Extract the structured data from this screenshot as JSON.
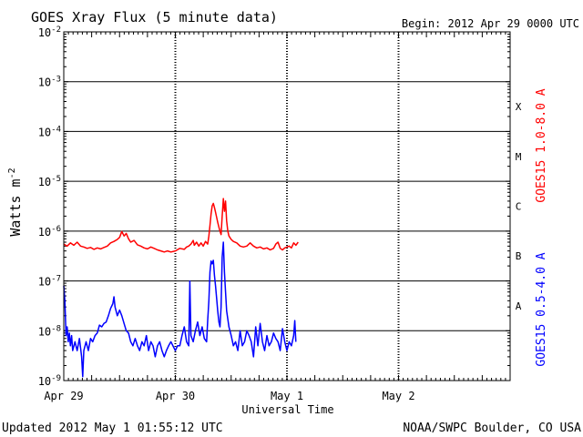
{
  "header": {
    "title": "GOES Xray Flux (5 minute data)",
    "begin": "Begin:  2012 Apr 29 0000 UTC"
  },
  "footer": {
    "updated": "Updated 2012 May  1 01:55:12 UTC",
    "credit": "NOAA/SWPC Boulder, CO USA"
  },
  "colors": {
    "long": "#ff0000",
    "short": "#0000ff",
    "axis": "#000000"
  },
  "chart_data": {
    "type": "line",
    "title": "GOES Xray Flux (5 minute data)",
    "xlabel": "Universal Time",
    "ylabel_base": "Watts m",
    "ylabel_exp": "-2",
    "yscale": "log",
    "ylim": [
      1e-09,
      0.01
    ],
    "xlim": [
      0,
      4
    ],
    "grid": true,
    "y_ticks": [
      {
        "value": 1e-09,
        "base": "10",
        "exp": "-9"
      },
      {
        "value": 1e-08,
        "base": "10",
        "exp": "-8"
      },
      {
        "value": 1e-07,
        "base": "10",
        "exp": "-7"
      },
      {
        "value": 1e-06,
        "base": "10",
        "exp": "-6"
      },
      {
        "value": 1e-05,
        "base": "10",
        "exp": "-5"
      },
      {
        "value": 0.0001,
        "base": "10",
        "exp": "-4"
      },
      {
        "value": 0.001,
        "base": "10",
        "exp": "-3"
      },
      {
        "value": 0.01,
        "base": "10",
        "exp": "-2"
      }
    ],
    "x_ticks": [
      {
        "value": 0,
        "label": "Apr 29"
      },
      {
        "value": 1,
        "label": "Apr 30"
      },
      {
        "value": 2,
        "label": "May 1"
      },
      {
        "value": 3,
        "label": "May 2"
      }
    ],
    "flare_classes": [
      {
        "label": "A",
        "value": 3.16e-08
      },
      {
        "label": "B",
        "value": 3.16e-07
      },
      {
        "label": "C",
        "value": 3.16e-06
      },
      {
        "label": "M",
        "value": 3.16e-05
      },
      {
        "label": "X",
        "value": 0.000316
      }
    ],
    "series": [
      {
        "name": "GOES15 1.0-8.0 A",
        "color": "#ff0000",
        "points": [
          [
            0.0,
            5.5e-07
          ],
          [
            0.03,
            5e-07
          ],
          [
            0.06,
            5.8e-07
          ],
          [
            0.09,
            5.2e-07
          ],
          [
            0.12,
            6e-07
          ],
          [
            0.15,
            5e-07
          ],
          [
            0.18,
            4.8e-07
          ],
          [
            0.21,
            4.5e-07
          ],
          [
            0.24,
            4.7e-07
          ],
          [
            0.27,
            4.3e-07
          ],
          [
            0.3,
            4.6e-07
          ],
          [
            0.33,
            4.4e-07
          ],
          [
            0.36,
            4.7e-07
          ],
          [
            0.39,
            5e-07
          ],
          [
            0.42,
            5.8e-07
          ],
          [
            0.45,
            6.2e-07
          ],
          [
            0.48,
            6.8e-07
          ],
          [
            0.5,
            7.5e-07
          ],
          [
            0.52,
            9.8e-07
          ],
          [
            0.54,
            8e-07
          ],
          [
            0.56,
            9e-07
          ],
          [
            0.58,
            7e-07
          ],
          [
            0.6,
            6e-07
          ],
          [
            0.63,
            6.5e-07
          ],
          [
            0.66,
            5.3e-07
          ],
          [
            0.69,
            5e-07
          ],
          [
            0.72,
            4.6e-07
          ],
          [
            0.75,
            4.4e-07
          ],
          [
            0.78,
            4.8e-07
          ],
          [
            0.81,
            4.5e-07
          ],
          [
            0.84,
            4.2e-07
          ],
          [
            0.87,
            4e-07
          ],
          [
            0.9,
            3.8e-07
          ],
          [
            0.93,
            4e-07
          ],
          [
            0.96,
            3.8e-07
          ],
          [
            1.0,
            4e-07
          ],
          [
            1.04,
            4.5e-07
          ],
          [
            1.08,
            4.3e-07
          ],
          [
            1.1,
            4.8e-07
          ],
          [
            1.12,
            5e-07
          ],
          [
            1.14,
            5.5e-07
          ],
          [
            1.16,
            6.5e-07
          ],
          [
            1.17,
            5.2e-07
          ],
          [
            1.19,
            6e-07
          ],
          [
            1.21,
            5e-07
          ],
          [
            1.23,
            5.8e-07
          ],
          [
            1.25,
            5e-07
          ],
          [
            1.27,
            6.2e-07
          ],
          [
            1.29,
            5.5e-07
          ],
          [
            1.3,
            8e-07
          ],
          [
            1.31,
            1.3e-06
          ],
          [
            1.32,
            2.2e-06
          ],
          [
            1.33,
            3.2e-06
          ],
          [
            1.34,
            3.6e-06
          ],
          [
            1.35,
            3e-06
          ],
          [
            1.36,
            2.4e-06
          ],
          [
            1.37,
            1.9e-06
          ],
          [
            1.38,
            1.5e-06
          ],
          [
            1.39,
            1.2e-06
          ],
          [
            1.4,
            1e-06
          ],
          [
            1.41,
            8.5e-07
          ],
          [
            1.42,
            2e-06
          ],
          [
            1.43,
            4.5e-06
          ],
          [
            1.44,
            2.5e-06
          ],
          [
            1.45,
            4e-06
          ],
          [
            1.46,
            1.6e-06
          ],
          [
            1.47,
            1e-06
          ],
          [
            1.48,
            8e-07
          ],
          [
            1.5,
            6.8e-07
          ],
          [
            1.52,
            6.2e-07
          ],
          [
            1.55,
            5.8e-07
          ],
          [
            1.58,
            5e-07
          ],
          [
            1.61,
            4.8e-07
          ],
          [
            1.64,
            5e-07
          ],
          [
            1.67,
            5.8e-07
          ],
          [
            1.7,
            5e-07
          ],
          [
            1.73,
            4.6e-07
          ],
          [
            1.76,
            4.8e-07
          ],
          [
            1.79,
            4.4e-07
          ],
          [
            1.82,
            4.6e-07
          ],
          [
            1.85,
            4.2e-07
          ],
          [
            1.88,
            4.5e-07
          ],
          [
            1.9,
            5.5e-07
          ],
          [
            1.92,
            6e-07
          ],
          [
            1.94,
            4.5e-07
          ],
          [
            1.96,
            4.2e-07
          ],
          [
            1.98,
            4.6e-07
          ],
          [
            2.0,
            4.8e-07
          ],
          [
            2.02,
            5e-07
          ],
          [
            2.04,
            4.6e-07
          ],
          [
            2.06,
            5.8e-07
          ],
          [
            2.08,
            5.2e-07
          ],
          [
            2.1,
            6e-07
          ]
        ]
      },
      {
        "name": "GOES15 0.5-4.0 A",
        "color": "#0000ff",
        "points": [
          [
            0.0,
            8e-08
          ],
          [
            0.01,
            4e-08
          ],
          [
            0.02,
            8e-09
          ],
          [
            0.03,
            1.2e-08
          ],
          [
            0.04,
            6e-09
          ],
          [
            0.05,
            9e-09
          ],
          [
            0.06,
            5e-09
          ],
          [
            0.07,
            8e-09
          ],
          [
            0.08,
            4e-09
          ],
          [
            0.1,
            6e-09
          ],
          [
            0.12,
            4e-09
          ],
          [
            0.14,
            7e-09
          ],
          [
            0.16,
            3e-09
          ],
          [
            0.17,
            1.2e-09
          ],
          [
            0.18,
            4e-09
          ],
          [
            0.2,
            6e-09
          ],
          [
            0.22,
            4e-09
          ],
          [
            0.24,
            7e-09
          ],
          [
            0.26,
            6e-09
          ],
          [
            0.28,
            8e-09
          ],
          [
            0.3,
            9e-09
          ],
          [
            0.32,
            1.3e-08
          ],
          [
            0.34,
            1.2e-08
          ],
          [
            0.36,
            1.4e-08
          ],
          [
            0.38,
            1.5e-08
          ],
          [
            0.4,
            2e-08
          ],
          [
            0.42,
            2.8e-08
          ],
          [
            0.44,
            3.5e-08
          ],
          [
            0.45,
            4.8e-08
          ],
          [
            0.46,
            3e-08
          ],
          [
            0.48,
            2e-08
          ],
          [
            0.5,
            2.6e-08
          ],
          [
            0.52,
            2e-08
          ],
          [
            0.54,
            1.4e-08
          ],
          [
            0.56,
            1e-08
          ],
          [
            0.58,
            9e-09
          ],
          [
            0.6,
            6e-09
          ],
          [
            0.62,
            5e-09
          ],
          [
            0.64,
            7e-09
          ],
          [
            0.66,
            5e-09
          ],
          [
            0.68,
            4e-09
          ],
          [
            0.7,
            6e-09
          ],
          [
            0.72,
            5e-09
          ],
          [
            0.74,
            8e-09
          ],
          [
            0.76,
            4e-09
          ],
          [
            0.78,
            6e-09
          ],
          [
            0.8,
            5e-09
          ],
          [
            0.82,
            3e-09
          ],
          [
            0.84,
            5e-09
          ],
          [
            0.86,
            6e-09
          ],
          [
            0.88,
            4e-09
          ],
          [
            0.9,
            3e-09
          ],
          [
            0.92,
            4e-09
          ],
          [
            0.94,
            5e-09
          ],
          [
            0.96,
            6e-09
          ],
          [
            1.0,
            4e-09
          ],
          [
            1.02,
            5e-09
          ],
          [
            1.04,
            5e-09
          ],
          [
            1.06,
            8e-09
          ],
          [
            1.08,
            1.2e-08
          ],
          [
            1.1,
            6e-09
          ],
          [
            1.12,
            5e-09
          ],
          [
            1.13,
            1e-07
          ],
          [
            1.14,
            8e-09
          ],
          [
            1.16,
            6e-09
          ],
          [
            1.18,
            1e-08
          ],
          [
            1.2,
            1.5e-08
          ],
          [
            1.22,
            8e-09
          ],
          [
            1.24,
            1.2e-08
          ],
          [
            1.26,
            7e-09
          ],
          [
            1.28,
            6e-09
          ],
          [
            1.29,
            1.6e-08
          ],
          [
            1.3,
            4e-08
          ],
          [
            1.31,
            1.5e-07
          ],
          [
            1.32,
            2.5e-07
          ],
          [
            1.33,
            2.2e-07
          ],
          [
            1.34,
            2.6e-07
          ],
          [
            1.35,
            1.3e-07
          ],
          [
            1.36,
            8e-08
          ],
          [
            1.37,
            4.5e-08
          ],
          [
            1.38,
            2.5e-08
          ],
          [
            1.39,
            1.5e-08
          ],
          [
            1.4,
            1.2e-08
          ],
          [
            1.41,
            3e-08
          ],
          [
            1.42,
            3e-07
          ],
          [
            1.43,
            6e-07
          ],
          [
            1.44,
            1.5e-07
          ],
          [
            1.45,
            6e-08
          ],
          [
            1.46,
            2.5e-08
          ],
          [
            1.48,
            1.2e-08
          ],
          [
            1.5,
            8e-09
          ],
          [
            1.52,
            5e-09
          ],
          [
            1.54,
            6e-09
          ],
          [
            1.56,
            4e-09
          ],
          [
            1.58,
            1e-08
          ],
          [
            1.6,
            5e-09
          ],
          [
            1.62,
            6e-09
          ],
          [
            1.64,
            1e-08
          ],
          [
            1.66,
            8e-09
          ],
          [
            1.68,
            6e-09
          ],
          [
            1.7,
            3e-09
          ],
          [
            1.72,
            1.2e-08
          ],
          [
            1.74,
            5e-09
          ],
          [
            1.76,
            1.4e-08
          ],
          [
            1.78,
            6e-09
          ],
          [
            1.8,
            4e-09
          ],
          [
            1.82,
            8e-09
          ],
          [
            1.84,
            5e-09
          ],
          [
            1.86,
            6e-09
          ],
          [
            1.88,
            9e-09
          ],
          [
            1.9,
            7e-09
          ],
          [
            1.92,
            6e-09
          ],
          [
            1.94,
            4e-09
          ],
          [
            1.96,
            1.1e-08
          ],
          [
            1.98,
            6e-09
          ],
          [
            2.0,
            4e-09
          ],
          [
            2.02,
            6e-09
          ],
          [
            2.04,
            5e-09
          ],
          [
            2.06,
            8e-09
          ],
          [
            2.07,
            1.6e-08
          ],
          [
            2.08,
            6e-09
          ]
        ]
      }
    ]
  }
}
